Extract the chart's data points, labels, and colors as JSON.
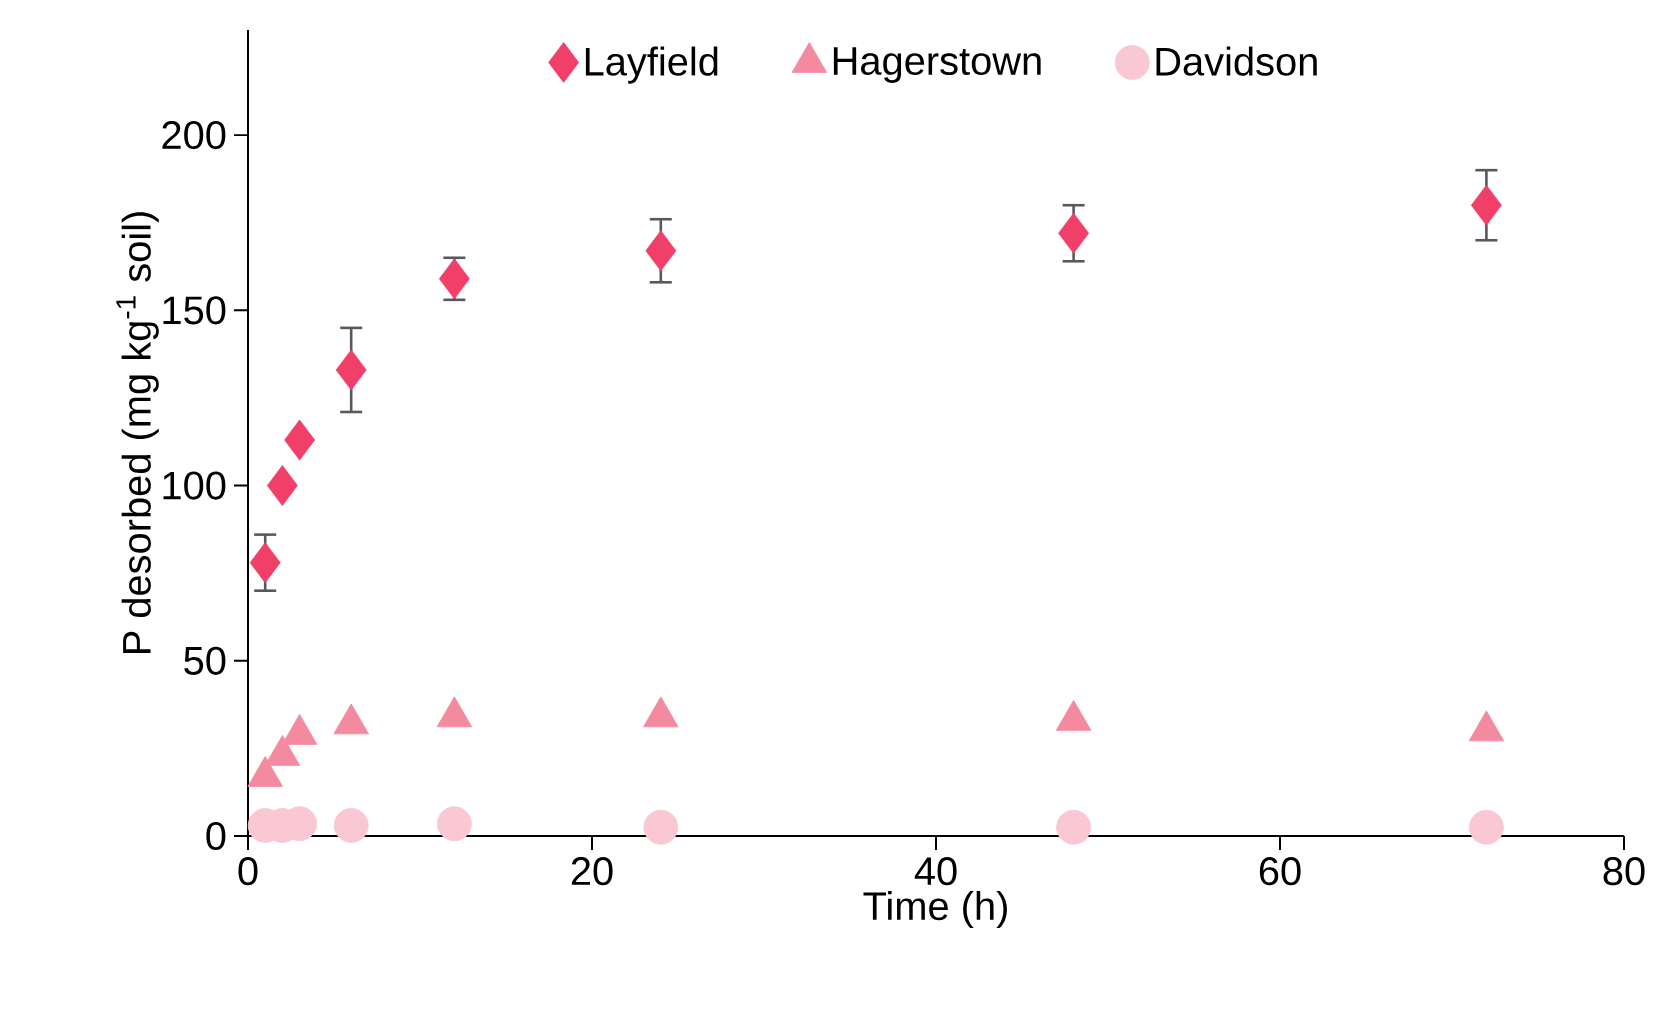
{
  "chart_data": {
    "type": "scatter",
    "xlabel": "Time (h)",
    "ylabel": "P desorbed (mg kg$^{-1}$ soil)",
    "xlim": [
      0,
      80
    ],
    "ylim": [
      0,
      230
    ],
    "xticks": [
      0,
      20,
      40,
      60,
      80
    ],
    "yticks": [
      0,
      50,
      100,
      150,
      200
    ],
    "legend": "top",
    "grid": false,
    "series": [
      {
        "name": "Layfield",
        "color": "#f0406a",
        "marker": "diamond",
        "x": [
          1,
          2,
          3,
          6,
          12,
          24,
          48,
          72
        ],
        "values": [
          78,
          100,
          113,
          133,
          159,
          167,
          172,
          180
        ],
        "errors": [
          8,
          null,
          null,
          12,
          6,
          9,
          8,
          10
        ]
      },
      {
        "name": "Hagerstown",
        "color": "#f48aa0",
        "marker": "triangle",
        "x": [
          1,
          2,
          3,
          6,
          12,
          24,
          48,
          72
        ],
        "values": [
          17,
          23,
          29,
          32,
          34,
          34,
          33,
          30
        ]
      },
      {
        "name": "Davidson",
        "color": "#f9c8d3",
        "marker": "circle",
        "x": [
          1,
          2,
          3,
          6,
          12,
          24,
          48,
          72
        ],
        "values": [
          3,
          3,
          3.5,
          3,
          3.5,
          2.5,
          2.5,
          2.5
        ]
      }
    ]
  }
}
